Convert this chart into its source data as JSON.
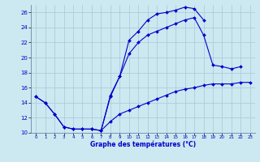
{
  "xlabel": "Graphe des températures (°C)",
  "background_color": "#cce8f0",
  "grid_color": "#a8c8d8",
  "line_color": "#0000cc",
  "ylim": [
    10,
    27
  ],
  "xlim": [
    -0.5,
    23.5
  ],
  "yticks": [
    10,
    12,
    14,
    16,
    18,
    20,
    22,
    24,
    26
  ],
  "xticks": [
    0,
    1,
    2,
    3,
    4,
    5,
    6,
    7,
    8,
    9,
    10,
    11,
    12,
    13,
    14,
    15,
    16,
    17,
    18,
    19,
    20,
    21,
    22,
    23
  ],
  "c1_x": [
    0,
    1,
    2,
    3,
    4,
    5,
    6,
    7,
    8,
    9,
    10,
    11,
    12,
    13,
    14,
    15,
    16,
    17,
    18
  ],
  "c1_y": [
    14.8,
    14.0,
    12.5,
    10.8,
    10.5,
    10.5,
    10.5,
    10.3,
    15.0,
    17.5,
    22.3,
    23.5,
    25.0,
    25.8,
    26.0,
    26.3,
    26.7,
    26.5,
    25.0
  ],
  "c2_x": [
    0,
    1,
    2,
    3,
    4,
    5,
    6,
    7,
    8,
    9,
    10,
    11,
    12,
    13,
    14,
    15,
    16,
    17,
    18,
    19,
    20,
    21,
    22
  ],
  "c2_y": [
    14.8,
    14.0,
    12.5,
    10.8,
    10.5,
    10.5,
    10.5,
    10.3,
    14.8,
    17.5,
    20.5,
    22.0,
    23.0,
    23.5,
    24.0,
    24.5,
    25.0,
    25.3,
    23.0,
    19.0,
    18.8,
    18.5,
    18.8
  ],
  "c3_x": [
    7,
    8,
    9,
    10,
    11,
    12,
    13,
    14,
    15,
    16,
    17,
    18,
    19,
    20,
    21,
    22,
    23
  ],
  "c3_y": [
    10.3,
    11.5,
    12.5,
    13.0,
    13.5,
    14.0,
    14.5,
    15.0,
    15.5,
    15.8,
    16.0,
    16.3,
    16.5,
    16.5,
    16.5,
    16.7,
    16.7
  ]
}
